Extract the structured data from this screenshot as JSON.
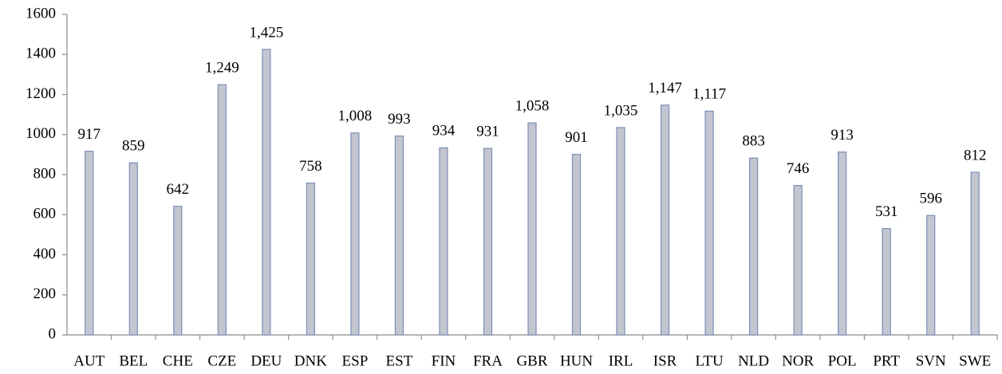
{
  "chart_data": {
    "type": "bar",
    "categories": [
      "AUT",
      "BEL",
      "CHE",
      "CZE",
      "DEU",
      "DNK",
      "ESP",
      "EST",
      "FIN",
      "FRA",
      "GBR",
      "HUN",
      "IRL",
      "ISR",
      "LTU",
      "NLD",
      "NOR",
      "POL",
      "PRT",
      "SVN",
      "SWE"
    ],
    "values": [
      917,
      859,
      642,
      1249,
      1425,
      758,
      1008,
      993,
      934,
      931,
      1058,
      901,
      1035,
      1147,
      1117,
      883,
      746,
      913,
      531,
      596,
      812
    ],
    "value_labels": [
      "917",
      "859",
      "642",
      "1,249",
      "1,425",
      "758",
      "1,008",
      "993",
      "934",
      "931",
      "1,058",
      "901",
      "1,035",
      "1,147",
      "1,117",
      "883",
      "746",
      "913",
      "531",
      "596",
      "812"
    ],
    "color": "#c3c6cf",
    "edge_color": "#7b8db8",
    "ylim": [
      0,
      1600
    ],
    "yticks": [
      0,
      200,
      400,
      600,
      800,
      1000,
      1200,
      1400,
      1600
    ],
    "grid": false
  }
}
